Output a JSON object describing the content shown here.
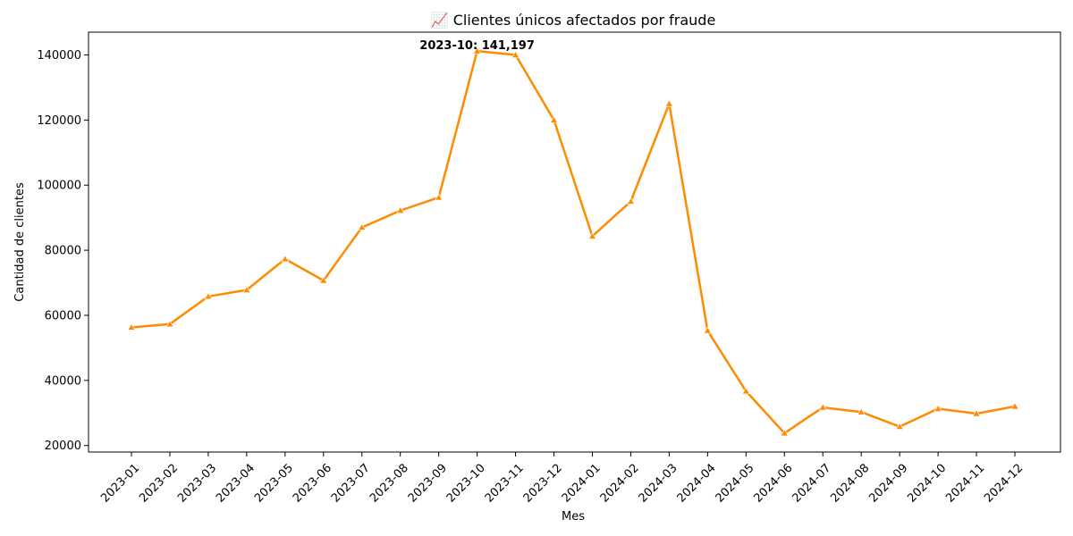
{
  "chart_data": {
    "type": "line",
    "title": "📈 Clientes únicos afectados por fraude",
    "xlabel": "Mes",
    "ylabel": "Cantidad de clientes",
    "categories": [
      "2023-01",
      "2023-02",
      "2023-03",
      "2023-04",
      "2023-05",
      "2023-06",
      "2023-07",
      "2023-08",
      "2023-09",
      "2023-10",
      "2023-11",
      "2023-12",
      "2024-01",
      "2024-02",
      "2024-03",
      "2024-04",
      "2024-05",
      "2024-06",
      "2024-07",
      "2024-08",
      "2024-09",
      "2024-10",
      "2024-11",
      "2024-12"
    ],
    "series": [
      {
        "values": [
          56300,
          57300,
          65800,
          67800,
          77300,
          70700,
          87000,
          92200,
          96200,
          141197,
          140000,
          120000,
          84300,
          95000,
          125000,
          55300,
          36700,
          23800,
          31700,
          30300,
          25800,
          31300,
          29800,
          32000
        ],
        "color": "#ff8c00",
        "marker": "triangle"
      }
    ],
    "ylim": [
      18000,
      147000
    ],
    "yticks": [
      20000,
      40000,
      60000,
      80000,
      100000,
      120000,
      140000
    ],
    "grid": false,
    "annotations": [
      {
        "category": "2023-10",
        "value": 141197,
        "text": "2023-10: 141,197"
      }
    ]
  }
}
